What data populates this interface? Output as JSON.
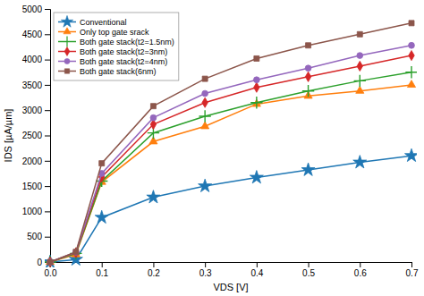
{
  "chart_data": {
    "type": "line",
    "xlabel": "VDS [V]",
    "ylabel": "IDS [µA/µm]",
    "x": [
      0,
      0.05,
      0.1,
      0.2,
      0.3,
      0.4,
      0.5,
      0.6,
      0.7
    ],
    "series": [
      {
        "name": "Conventional",
        "marker": "star",
        "values": [
          0,
          50,
          880,
          1280,
          1500,
          1670,
          1820,
          1970,
          2100
        ]
      },
      {
        "name": "Only top gate srack",
        "marker": "triangle-up",
        "values": [
          0,
          150,
          1580,
          2380,
          2680,
          3120,
          3280,
          3380,
          3500
        ]
      },
      {
        "name": "Both gate stack(t2=1.5nm)",
        "marker": "plus",
        "values": [
          0,
          170,
          1600,
          2550,
          2880,
          3150,
          3380,
          3580,
          3750
        ]
      },
      {
        "name": "Both gate stack(t2=3nm)",
        "marker": "diamond",
        "values": [
          0,
          185,
          1680,
          2720,
          3150,
          3450,
          3660,
          3870,
          4080
        ]
      },
      {
        "name": "Both gate stack(t2=4nm)",
        "marker": "circle",
        "values": [
          0,
          195,
          1750,
          2850,
          3330,
          3600,
          3830,
          4080,
          4280
        ]
      },
      {
        "name": "Both gate stack(6nm)",
        "marker": "square",
        "values": [
          0,
          200,
          1950,
          3080,
          3620,
          4020,
          4280,
          4500,
          4720
        ]
      }
    ],
    "xlim": [
      0,
      0.7
    ],
    "ylim": [
      0,
      5000
    ],
    "xticks": [
      {
        "value": 0,
        "label": "0.0"
      },
      0.1,
      0.2,
      0.3,
      0.4,
      0.5,
      0.6,
      0.7
    ],
    "yticks": [
      0,
      500,
      1000,
      1500,
      2000,
      2500,
      3000,
      3500,
      4000,
      4500,
      5000
    ],
    "legend": "upper left",
    "grid": false
  }
}
